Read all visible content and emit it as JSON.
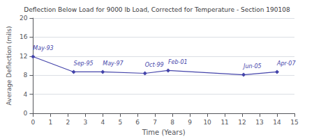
{
  "chart_data": {
    "type": "line",
    "title": "Deflection Below Load for 9000 lb Load, Corrected for Temperature - Section 190108",
    "xlabel": "Time (Years)",
    "ylabel": "Average Deflection (mils)",
    "x": [
      0,
      2.33,
      4.0,
      6.42,
      7.75,
      12.08,
      14.0
    ],
    "values": [
      11.9,
      8.7,
      8.7,
      8.4,
      9.0,
      8.1,
      8.7
    ],
    "annotations": [
      "May-93",
      "Sep-95",
      "May-97",
      "Oct-99",
      "Feb-01",
      "Jun-05",
      "Apr-07"
    ],
    "xlim": [
      0,
      15
    ],
    "xticks": [
      0,
      1,
      2,
      3,
      4,
      5,
      6,
      7,
      8,
      9,
      10,
      11,
      12,
      13,
      14,
      15
    ],
    "ylim": [
      0,
      20
    ],
    "yticks": [
      0,
      4,
      8,
      12,
      16,
      20
    ],
    "color": "#4444aa",
    "marker": "diamond",
    "grid": true
  }
}
